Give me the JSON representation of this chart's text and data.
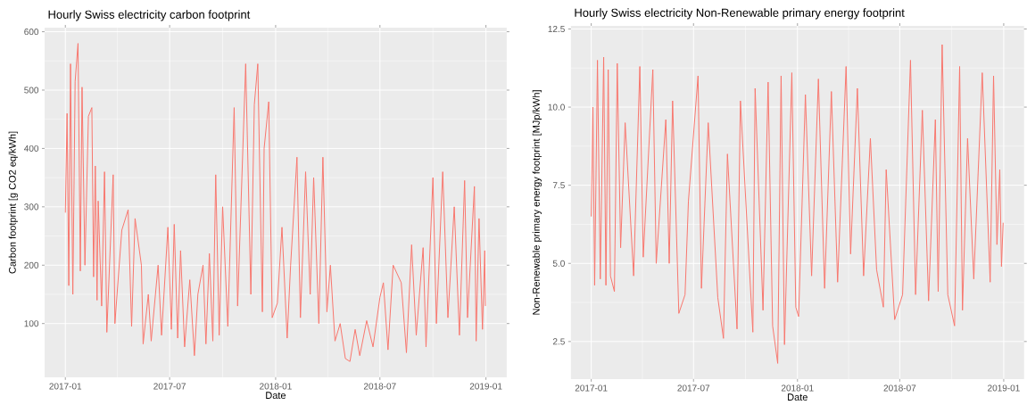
{
  "chart_data": [
    {
      "type": "line",
      "title": "Hourly Swiss electricity carbon footprint",
      "xlabel": "Date",
      "ylabel": "Carbon footprint [g CO2 eq/kWh]",
      "xlim": [
        "2016-11-26",
        "2019-02-06"
      ],
      "ylim": [
        8,
        607
      ],
      "xticks": [
        "2017-01",
        "2017-07",
        "2018-01",
        "2018-07",
        "2019-01"
      ],
      "yticks": [
        100,
        200,
        300,
        400,
        500,
        600
      ],
      "grid": true,
      "series": [
        {
          "color": "#f8766d",
          "x": [
            "2017-01-01",
            "2017-01-04",
            "2017-01-07",
            "2017-01-10",
            "2017-01-14",
            "2017-01-18",
            "2017-01-23",
            "2017-01-27",
            "2017-01-30",
            "2017-02-04",
            "2017-02-10",
            "2017-02-16",
            "2017-02-19",
            "2017-02-22",
            "2017-02-25",
            "2017-02-27",
            "2017-03-05",
            "2017-03-10",
            "2017-03-14",
            "2017-03-25",
            "2017-03-28",
            "2017-04-09",
            "2017-04-20",
            "2017-04-26",
            "2017-05-02",
            "2017-05-13",
            "2017-05-16",
            "2017-05-25",
            "2017-05-30",
            "2017-06-11",
            "2017-06-17",
            "2017-06-28",
            "2017-07-04",
            "2017-07-09",
            "2017-07-15",
            "2017-07-20",
            "2017-07-27",
            "2017-08-05",
            "2017-08-13",
            "2017-08-19",
            "2017-08-28",
            "2017-09-02",
            "2017-09-08",
            "2017-09-14",
            "2017-09-19",
            "2017-09-25",
            "2017-10-01",
            "2017-10-10",
            "2017-10-21",
            "2017-10-27",
            "2017-11-10",
            "2017-11-19",
            "2017-11-25",
            "2017-12-01",
            "2017-12-09",
            "2017-12-12",
            "2017-12-20",
            "2017-12-26",
            "2018-01-04",
            "2018-01-12",
            "2018-01-21",
            "2018-01-27",
            "2018-02-07",
            "2018-02-13",
            "2018-02-22",
            "2018-03-02",
            "2018-03-08",
            "2018-03-17",
            "2018-03-24",
            "2018-03-31",
            "2018-04-06",
            "2018-04-14",
            "2018-04-23",
            "2018-05-02",
            "2018-05-10",
            "2018-05-19",
            "2018-05-27",
            "2018-06-08",
            "2018-06-19",
            "2018-07-01",
            "2018-07-07",
            "2018-07-15",
            "2018-07-24",
            "2018-08-07",
            "2018-08-16",
            "2018-08-25",
            "2018-09-02",
            "2018-09-14",
            "2018-09-19",
            "2018-10-01",
            "2018-10-07",
            "2018-10-18",
            "2018-10-27",
            "2018-11-07",
            "2018-11-16",
            "2018-11-25",
            "2018-11-30",
            "2018-12-12",
            "2018-12-15",
            "2018-12-20",
            "2018-12-26",
            "2018-12-30",
            "2018-12-31"
          ],
          "values": [
            290,
            460,
            165,
            545,
            150,
            515,
            580,
            190,
            505,
            200,
            455,
            470,
            180,
            370,
            140,
            310,
            130,
            360,
            85,
            355,
            100,
            260,
            295,
            95,
            280,
            200,
            65,
            150,
            70,
            200,
            80,
            265,
            90,
            270,
            75,
            225,
            60,
            175,
            45,
            150,
            200,
            65,
            220,
            70,
            355,
            80,
            300,
            95,
            470,
            130,
            545,
            150,
            475,
            545,
            120,
            400,
            480,
            110,
            135,
            265,
            75,
            200,
            385,
            110,
            360,
            150,
            350,
            100,
            385,
            120,
            200,
            70,
            100,
            40,
            35,
            90,
            45,
            105,
            60,
            145,
            170,
            55,
            200,
            170,
            50,
            235,
            80,
            230,
            60,
            350,
            100,
            360,
            110,
            300,
            80,
            345,
            110,
            335,
            70,
            280,
            90,
            225,
            130
          ]
        }
      ]
    },
    {
      "type": "line",
      "title": "Hourly Swiss electricity Non-Renewable primary energy footprint",
      "xlabel": "Date",
      "ylabel": "Non-Renewable primary energy footprint [MJp/kWh]",
      "xlim": [
        "2016-11-26",
        "2019-02-06"
      ],
      "ylim": [
        1.3,
        12.6
      ],
      "xticks": [
        "2017-01",
        "2017-07",
        "2018-01",
        "2018-07",
        "2019-01"
      ],
      "yticks": [
        2.5,
        {
          "value": 5,
          "label": "5.0"
        },
        7.5,
        {
          "value": 10,
          "label": "10.0"
        },
        12.5
      ],
      "grid": true,
      "series": [
        {
          "color": "#f8766d",
          "x": [
            "2017-01-01",
            "2017-01-04",
            "2017-01-07",
            "2017-01-12",
            "2017-01-17",
            "2017-01-23",
            "2017-01-27",
            "2017-01-31",
            "2017-02-04",
            "2017-02-11",
            "2017-02-16",
            "2017-02-22",
            "2017-03-02",
            "2017-03-17",
            "2017-03-28",
            "2017-04-03",
            "2017-04-20",
            "2017-04-26",
            "2017-05-13",
            "2017-05-19",
            "2017-05-25",
            "2017-06-05",
            "2017-06-16",
            "2017-06-22",
            "2017-07-09",
            "2017-07-15",
            "2017-07-27",
            "2017-08-13",
            "2017-08-23",
            "2017-08-30",
            "2017-09-16",
            "2017-09-22",
            "2017-10-14",
            "2017-10-18",
            "2017-11-01",
            "2017-11-10",
            "2017-11-18",
            "2017-11-27",
            "2017-12-03",
            "2017-12-09",
            "2017-12-22",
            "2017-12-29",
            "2018-01-03",
            "2018-01-15",
            "2018-01-26",
            "2018-02-07",
            "2018-02-18",
            "2018-03-02",
            "2018-03-13",
            "2018-03-28",
            "2018-04-05",
            "2018-04-17",
            "2018-04-28",
            "2018-05-10",
            "2018-05-21",
            "2018-06-02",
            "2018-06-07",
            "2018-06-22",
            "2018-07-06",
            "2018-07-20",
            "2018-07-29",
            "2018-08-10",
            "2018-08-21",
            "2018-09-02",
            "2018-09-07",
            "2018-09-14",
            "2018-09-24",
            "2018-10-06",
            "2018-10-15",
            "2018-10-20",
            "2018-10-29",
            "2018-11-09",
            "2018-11-24",
            "2018-12-08",
            "2018-12-14",
            "2018-12-20",
            "2018-12-25",
            "2018-12-28",
            "2018-12-31"
          ],
          "values": [
            6.5,
            10.0,
            4.3,
            11.5,
            4.5,
            11.6,
            4.3,
            11.2,
            4.6,
            4.1,
            11.4,
            5.5,
            9.5,
            4.6,
            11.3,
            5.2,
            11.2,
            5.0,
            9.6,
            5.0,
            10.2,
            3.4,
            4.0,
            7.0,
            11.0,
            4.2,
            9.5,
            3.9,
            2.6,
            8.5,
            2.9,
            10.2,
            2.8,
            10.6,
            3.5,
            10.8,
            3.0,
            1.8,
            11.0,
            2.4,
            11.1,
            3.6,
            3.3,
            10.4,
            4.6,
            10.9,
            4.2,
            10.5,
            4.4,
            11.3,
            5.3,
            10.6,
            4.6,
            9.0,
            4.8,
            3.6,
            8.0,
            3.2,
            4.0,
            11.5,
            4.0,
            9.9,
            3.8,
            9.6,
            4.1,
            12.0,
            4.0,
            3.0,
            11.3,
            3.5,
            9.0,
            4.5,
            11.1,
            4.4,
            11.0,
            5.6,
            8.0,
            4.9,
            6.3
          ]
        }
      ]
    }
  ]
}
